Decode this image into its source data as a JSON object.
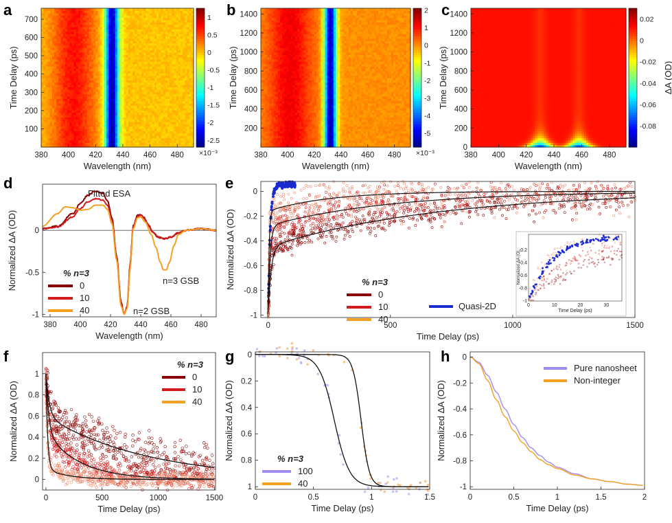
{
  "figure": {
    "panels": [
      {
        "id": "a",
        "label": "a"
      },
      {
        "id": "b",
        "label": "b"
      },
      {
        "id": "c",
        "label": "c"
      },
      {
        "id": "d",
        "label": "d"
      },
      {
        "id": "e",
        "label": "e"
      },
      {
        "id": "f",
        "label": "f"
      },
      {
        "id": "g",
        "label": "g"
      },
      {
        "id": "h",
        "label": "h"
      }
    ]
  },
  "chart_data": [
    {
      "panel": "a",
      "type": "heatmap",
      "xlabel": "Wavelength (nm)",
      "ylabel": "Time Delay (ps)",
      "xlim": [
        380,
        492
      ],
      "ylim": [
        0,
        760
      ],
      "xticks": [
        380,
        400,
        420,
        440,
        460,
        480
      ],
      "yticks": [
        100,
        200,
        300,
        400,
        500,
        600,
        700
      ],
      "colorbar": {
        "ticks": [
          1,
          0.5,
          0,
          -0.5,
          -1,
          -1.5,
          -2,
          -2.5
        ],
        "range": [
          -2.7,
          1.25
        ],
        "multiplier": "×10⁻³"
      },
      "features": {
        "gsb_center_nm": 432,
        "gsb_width_nm": 5,
        "gsb_min": -2.6,
        "esa_center_nm": 404,
        "esa_max": 0.7
      }
    },
    {
      "panel": "b",
      "type": "heatmap",
      "xlabel": "Wavelength (nm)",
      "ylabel": "Time Delay (ps)",
      "xlim": [
        380,
        492
      ],
      "ylim": [
        0,
        1460
      ],
      "xticks": [
        380,
        400,
        420,
        440,
        460,
        480
      ],
      "yticks": [
        200,
        400,
        600,
        800,
        1000,
        1200,
        1400
      ],
      "colorbar": {
        "ticks": [
          2,
          1,
          0,
          -1,
          -2,
          -3,
          -4,
          -5
        ],
        "range": [
          -5.8,
          2.1
        ],
        "multiplier": "×10⁻³"
      },
      "features": {
        "gsb_center_nm": 432,
        "gsb_width_nm": 4.5,
        "gsb_min": -5.6,
        "esa_center_nm": 402,
        "esa_max": 1.2
      }
    },
    {
      "panel": "c",
      "type": "heatmap",
      "xlabel": "Wavelength (nm)",
      "ylabel": "Time Delay (ps)",
      "xlim": [
        380,
        492
      ],
      "ylim": [
        0,
        1460
      ],
      "xticks": [
        380,
        400,
        420,
        440,
        460,
        480
      ],
      "yticks": [
        0,
        200,
        400,
        600,
        800,
        1000,
        1200,
        1400
      ],
      "colorbar": {
        "ticks": [
          0.02,
          0,
          -0.02,
          -0.04,
          -0.06,
          -0.08
        ],
        "range": [
          -0.1,
          0.03
        ],
        "label": "ΔA (OD)"
      },
      "features": {
        "gsb1_center_nm": 430,
        "gsb2_center_nm": 458,
        "gsb_min": -0.09,
        "decay_ps": 70
      }
    },
    {
      "panel": "d",
      "type": "line",
      "xlabel": "Wavelength (nm)",
      "ylabel": "Normalized ΔA (OD)",
      "xlim": [
        375,
        490
      ],
      "ylim": [
        -1.03,
        0.55
      ],
      "xticks": [
        380,
        400,
        420,
        440,
        460,
        480
      ],
      "yticks": [
        0,
        -0.5,
        -1
      ],
      "ytick_labels": [
        "0",
        "-0.5",
        "-1"
      ],
      "annotations": [
        "Fitted ESA",
        "n=3 GSB",
        "n=2 GSB"
      ],
      "legend": {
        "title": "% n=3",
        "entries": [
          "0",
          "10",
          "40"
        ],
        "colors": [
          "#8b0000",
          "#d01c1c",
          "#f5a020"
        ]
      },
      "series": [
        {
          "name": "0",
          "color": "#8b0000",
          "x": [
            375,
            385,
            395,
            400,
            405,
            410,
            415,
            418,
            421,
            424,
            427,
            429,
            431,
            433,
            435,
            438,
            440,
            442,
            445,
            448,
            452,
            456,
            460,
            465,
            470,
            480,
            490
          ],
          "y": [
            0.02,
            0.05,
            0.2,
            0.32,
            0.42,
            0.47,
            0.44,
            0.35,
            0.15,
            -0.3,
            -0.85,
            -1.0,
            -0.9,
            -0.4,
            0.05,
            0.18,
            0.19,
            0.16,
            0.07,
            -0.02,
            -0.09,
            -0.1,
            -0.08,
            -0.03,
            0.0,
            0.02,
            0.0
          ]
        },
        {
          "name": "10",
          "color": "#d01c1c",
          "x": [
            375,
            385,
            395,
            400,
            405,
            410,
            415,
            418,
            421,
            424,
            427,
            429,
            431,
            433,
            435,
            438,
            440,
            442,
            445,
            448,
            452,
            456,
            460,
            465,
            470,
            480,
            490
          ],
          "y": [
            0.02,
            0.04,
            0.16,
            0.26,
            0.34,
            0.38,
            0.36,
            0.3,
            0.12,
            -0.32,
            -0.88,
            -1.0,
            -0.92,
            -0.42,
            0.04,
            0.16,
            0.18,
            0.15,
            0.06,
            -0.02,
            -0.08,
            -0.1,
            -0.08,
            -0.03,
            0.0,
            0.02,
            0.0
          ]
        },
        {
          "name": "40",
          "color": "#f5a020",
          "x": [
            375,
            385,
            390,
            395,
            400,
            405,
            410,
            415,
            418,
            421,
            424,
            427,
            429,
            431,
            433,
            435,
            438,
            440,
            443,
            447,
            450,
            453,
            455,
            457,
            459,
            462,
            465,
            470,
            480,
            490
          ],
          "y": [
            0.05,
            0.2,
            0.28,
            0.27,
            0.24,
            0.25,
            0.3,
            0.3,
            0.25,
            0.08,
            -0.35,
            -0.9,
            -1.0,
            -0.93,
            -0.45,
            0.02,
            0.15,
            0.16,
            0.1,
            -0.05,
            -0.2,
            -0.38,
            -0.47,
            -0.47,
            -0.38,
            -0.18,
            -0.05,
            0.0,
            0.02,
            0.0
          ]
        }
      ]
    },
    {
      "panel": "e",
      "type": "scatter",
      "xlabel": "Time Delay (ps)",
      "ylabel": "Normalized ΔA (OD)",
      "xlim": [
        -30,
        1500
      ],
      "ylim": [
        -1.02,
        0.08
      ],
      "xticks": [
        0,
        500,
        1000,
        1500
      ],
      "yticks": [
        0,
        -0.2,
        -0.4,
        -0.6,
        -0.8,
        -1
      ],
      "legend": {
        "title": "% n=3",
        "entries": [
          "0",
          "10",
          "40",
          "Quasi-2D"
        ],
        "colors": [
          "#8b0000",
          "#d01c1c",
          "#f5a020",
          "#1a2bd0"
        ]
      },
      "fits": [
        {
          "name": "0",
          "tau_fast_ps": 12,
          "a_fast": 0.55,
          "tau_slow_ps": 700,
          "a_slow": 0.45
        },
        {
          "name": "10",
          "tau_fast_ps": 8,
          "a_fast": 0.72,
          "tau_slow_ps": 500,
          "a_slow": 0.28
        },
        {
          "name": "40",
          "tau_fast_ps": 4,
          "a_fast": 0.84,
          "tau_slow_ps": 250,
          "a_slow": 0.16
        }
      ],
      "quasi2d": {
        "rise_ps": 8,
        "end_ps": 110,
        "plateau": 0.05
      },
      "inset": {
        "xlabel": "Time Delay (ps)",
        "ylabel": "Normalized ΔA (O)",
        "xlim": [
          0,
          36
        ],
        "ylim": [
          -1,
          0.05
        ],
        "xticks": [
          0,
          10,
          20,
          30
        ],
        "yticks": [
          -0.2,
          -0.4,
          -0.6,
          -0.8,
          -1
        ]
      }
    },
    {
      "panel": "f",
      "type": "scatter",
      "xlabel": "Time Delay (ps)",
      "ylabel": "Normalized ΔA (OD)",
      "xlim": [
        -30,
        1510
      ],
      "ylim": [
        -0.1,
        1.2
      ],
      "xticks": [
        0,
        500,
        1000,
        1500
      ],
      "yticks": [
        0,
        0.2,
        0.4,
        0.6,
        0.8,
        1
      ],
      "legend": {
        "title": "% n=3",
        "entries": [
          "0",
          "10",
          "40"
        ],
        "colors": [
          "#8b0000",
          "#d01c1c",
          "#f5a020"
        ]
      },
      "fits": [
        {
          "name": "0",
          "a1": 0.4,
          "tau1_ps": 30,
          "a2": 0.6,
          "tau2_ps": 900
        },
        {
          "name": "10",
          "a1": 0.55,
          "tau1_ps": 25,
          "a2": 0.45,
          "tau2_ps": 300
        },
        {
          "name": "40",
          "a1": 0.9,
          "tau1_ps": 15,
          "a2": 0.1,
          "tau2_ps": 200
        }
      ]
    },
    {
      "panel": "g",
      "type": "line",
      "xlabel": "Time Delay (ps)",
      "ylabel": "Normalized ΔA (OD)",
      "xlim": [
        0,
        1.5
      ],
      "ylim": [
        -0.02,
        1.02
      ],
      "xticks": [
        0,
        0.5,
        1,
        1.5
      ],
      "yticks": [
        0,
        0.2,
        0.4,
        0.6,
        0.8,
        1
      ],
      "tick_labels_x": [
        "0",
        "0.5",
        "1",
        "1.5"
      ],
      "tick_labels_y": [
        "0",
        "0.2",
        "0.4",
        "0.6",
        "0.8",
        "1"
      ],
      "legend": {
        "title": "% n=3",
        "entries": [
          "100",
          "40"
        ],
        "colors": [
          "#a08cf0",
          "#f5a020"
        ]
      },
      "fits": [
        {
          "name": "100",
          "center_ps": 0.68,
          "width_ps": 0.13
        },
        {
          "name": "40",
          "center_ps": 0.91,
          "width_ps": 0.07
        }
      ]
    },
    {
      "panel": "h",
      "type": "line",
      "xlabel": "Time Delay (ps)",
      "ylabel": "Normalized ΔA (OD)",
      "xlim": [
        0,
        2
      ],
      "ylim": [
        -1.02,
        0.04
      ],
      "xticks": [
        0,
        0.5,
        1,
        1.5,
        2
      ],
      "yticks": [
        0,
        -0.2,
        -0.4,
        -0.6,
        -0.8,
        -1
      ],
      "tick_labels_x": [
        "0",
        "0.5",
        "1",
        "1.5",
        "2"
      ],
      "tick_labels_y": [
        "0",
        "-0.2",
        "-0.4",
        "-0.6",
        "-0.8",
        "-1"
      ],
      "legend": {
        "entries": [
          "Pure nanosheet",
          "Non-integer"
        ],
        "colors": [
          "#a08cf0",
          "#f5a020"
        ]
      },
      "series": [
        {
          "name": "Pure nanosheet",
          "color": "#a08cf0",
          "x": [
            0,
            0.1,
            0.2,
            0.3,
            0.4,
            0.5,
            0.6,
            0.7,
            0.8,
            0.9,
            1.0,
            1.2,
            1.4,
            1.6,
            1.8,
            2.0
          ],
          "y": [
            0,
            -0.04,
            -0.14,
            -0.27,
            -0.4,
            -0.52,
            -0.62,
            -0.7,
            -0.76,
            -0.81,
            -0.85,
            -0.9,
            -0.94,
            -0.96,
            -0.98,
            -0.99
          ]
        },
        {
          "name": "Non-integer",
          "color": "#f5a020",
          "x": [
            0,
            0.1,
            0.2,
            0.3,
            0.4,
            0.5,
            0.6,
            0.7,
            0.8,
            0.9,
            1.0,
            1.2,
            1.4,
            1.6,
            1.8,
            2.0
          ],
          "y": [
            0,
            -0.05,
            -0.18,
            -0.33,
            -0.46,
            -0.57,
            -0.66,
            -0.73,
            -0.79,
            -0.83,
            -0.86,
            -0.91,
            -0.94,
            -0.96,
            -0.98,
            -0.99
          ]
        }
      ]
    }
  ]
}
